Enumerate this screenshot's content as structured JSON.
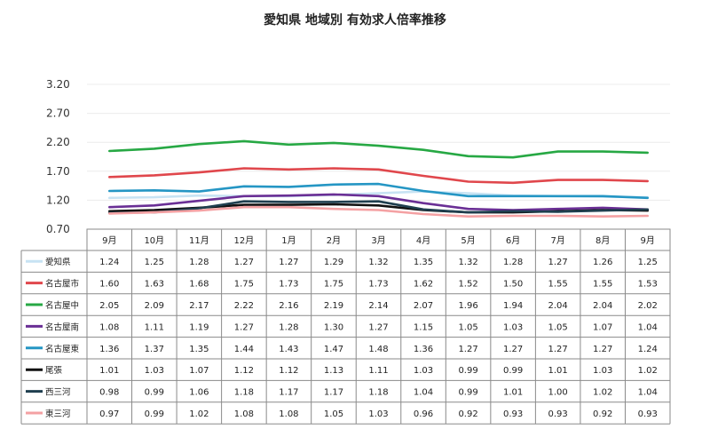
{
  "chart_data": {
    "type": "line",
    "title": "愛知県 地域別 有効求人倍率推移",
    "xlabel": "",
    "ylabel": "",
    "ylim": [
      0.7,
      3.2
    ],
    "yticks": [
      "3.20",
      "2.70",
      "2.20",
      "1.70",
      "1.20",
      "0.70"
    ],
    "grid": true,
    "legend": "data-table",
    "categories": [
      "9月",
      "10月",
      "11月",
      "12月",
      "1月",
      "2月",
      "3月",
      "4月",
      "5月",
      "6月",
      "7月",
      "8月",
      "9月"
    ],
    "series": [
      {
        "name": "愛知県",
        "color": "#c7e3f3",
        "values": [
          1.24,
          1.25,
          1.28,
          1.27,
          1.27,
          1.29,
          1.32,
          1.35,
          1.32,
          1.28,
          1.27,
          1.26,
          1.25
        ]
      },
      {
        "name": "名古屋市",
        "color": "#e0474c",
        "values": [
          1.6,
          1.63,
          1.68,
          1.75,
          1.73,
          1.75,
          1.73,
          1.62,
          1.52,
          1.5,
          1.55,
          1.55,
          1.53
        ]
      },
      {
        "name": "名古屋中",
        "color": "#27a844",
        "values": [
          2.05,
          2.09,
          2.17,
          2.22,
          2.16,
          2.19,
          2.14,
          2.07,
          1.96,
          1.94,
          2.04,
          2.04,
          2.02
        ]
      },
      {
        "name": "名古屋南",
        "color": "#6a2f95",
        "values": [
          1.08,
          1.11,
          1.19,
          1.27,
          1.28,
          1.3,
          1.27,
          1.15,
          1.05,
          1.03,
          1.05,
          1.07,
          1.04
        ]
      },
      {
        "name": "名古屋東",
        "color": "#2596c4",
        "values": [
          1.36,
          1.37,
          1.35,
          1.44,
          1.43,
          1.47,
          1.48,
          1.36,
          1.27,
          1.27,
          1.27,
          1.27,
          1.24
        ]
      },
      {
        "name": "尾張",
        "color": "#111111",
        "values": [
          1.01,
          1.03,
          1.07,
          1.12,
          1.12,
          1.13,
          1.11,
          1.03,
          0.99,
          0.99,
          1.01,
          1.03,
          1.02
        ]
      },
      {
        "name": "西三河",
        "color": "#1f3f4f",
        "values": [
          0.98,
          0.99,
          1.06,
          1.18,
          1.17,
          1.17,
          1.18,
          1.04,
          0.99,
          1.01,
          1.0,
          1.02,
          1.04
        ]
      },
      {
        "name": "東三河",
        "color": "#f4a1a3",
        "values": [
          0.97,
          0.99,
          1.02,
          1.08,
          1.08,
          1.05,
          1.03,
          0.96,
          0.92,
          0.93,
          0.93,
          0.92,
          0.93
        ]
      }
    ]
  }
}
